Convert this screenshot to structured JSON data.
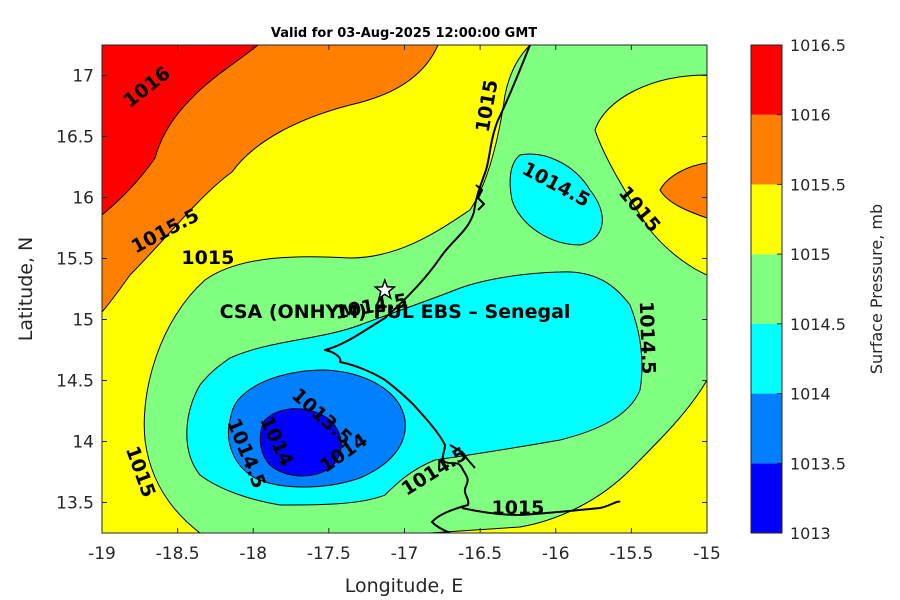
{
  "title": "Valid for 03-Aug-2025 12:00:00 GMT",
  "x_axis": {
    "label": "Longitude, E",
    "range": [
      -19,
      -15
    ],
    "ticks": [
      -19,
      -18.5,
      -18,
      -17.5,
      -17,
      -16.5,
      -16,
      -15.5,
      -15
    ]
  },
  "y_axis": {
    "label": "Latitude, N",
    "range": [
      13.25,
      17.25
    ],
    "ticks": [
      13.5,
      14,
      14.5,
      15,
      15.5,
      16,
      16.5,
      17
    ]
  },
  "colorbar": {
    "label": "Surface Pressure, mb",
    "levels": [
      1013,
      1013.5,
      1014,
      1014.5,
      1015,
      1015.5,
      1016,
      1016.5
    ],
    "tick_labels": [
      "1013",
      "1013.5",
      "1014",
      "1014.5",
      "1015",
      "1015.5",
      "1016",
      "1016.5"
    ],
    "colors": [
      "#0000ff",
      "#0080ff",
      "#00ffff",
      "#80ff80",
      "#ffff00",
      "#ff8000",
      "#ff0000",
      "#800000"
    ]
  },
  "site": {
    "name": "CSA (ONHYM) FUL EBS  – Senegal",
    "lon": -17.13,
    "lat": 15.24
  },
  "contour_labels": [
    {
      "text": "1016",
      "lon": -18.7,
      "lat": 16.9,
      "angle": -38
    },
    {
      "text": "1015.5",
      "lon": -18.58,
      "lat": 15.72,
      "angle": -28
    },
    {
      "text": "1015",
      "lon": -18.3,
      "lat": 15.5,
      "angle": 0
    },
    {
      "text": "1015",
      "lon": -16.45,
      "lat": 16.75,
      "angle": -80
    },
    {
      "text": "1014.5",
      "lon": -16.0,
      "lat": 16.1,
      "angle": 28
    },
    {
      "text": "1015",
      "lon": -15.45,
      "lat": 15.9,
      "angle": 50
    },
    {
      "text": "1014.5",
      "lon": -17.22,
      "lat": 15.1,
      "angle": -10
    },
    {
      "text": "1014.5",
      "lon": -15.4,
      "lat": 14.85,
      "angle": 88
    },
    {
      "text": "1013.5",
      "lon": -17.55,
      "lat": 14.2,
      "angle": 42
    },
    {
      "text": "1014",
      "lon": -17.85,
      "lat": 14.0,
      "angle": 65
    },
    {
      "text": "1014.5",
      "lon": -18.05,
      "lat": 13.9,
      "angle": 68
    },
    {
      "text": "1014",
      "lon": -17.4,
      "lat": 13.9,
      "angle": -35
    },
    {
      "text": "1014.5",
      "lon": -16.8,
      "lat": 13.75,
      "angle": -32
    },
    {
      "text": "1015",
      "lon": -18.75,
      "lat": 13.75,
      "angle": 70
    },
    {
      "text": "1015",
      "lon": -16.25,
      "lat": 13.45,
      "angle": 0
    }
  ]
}
